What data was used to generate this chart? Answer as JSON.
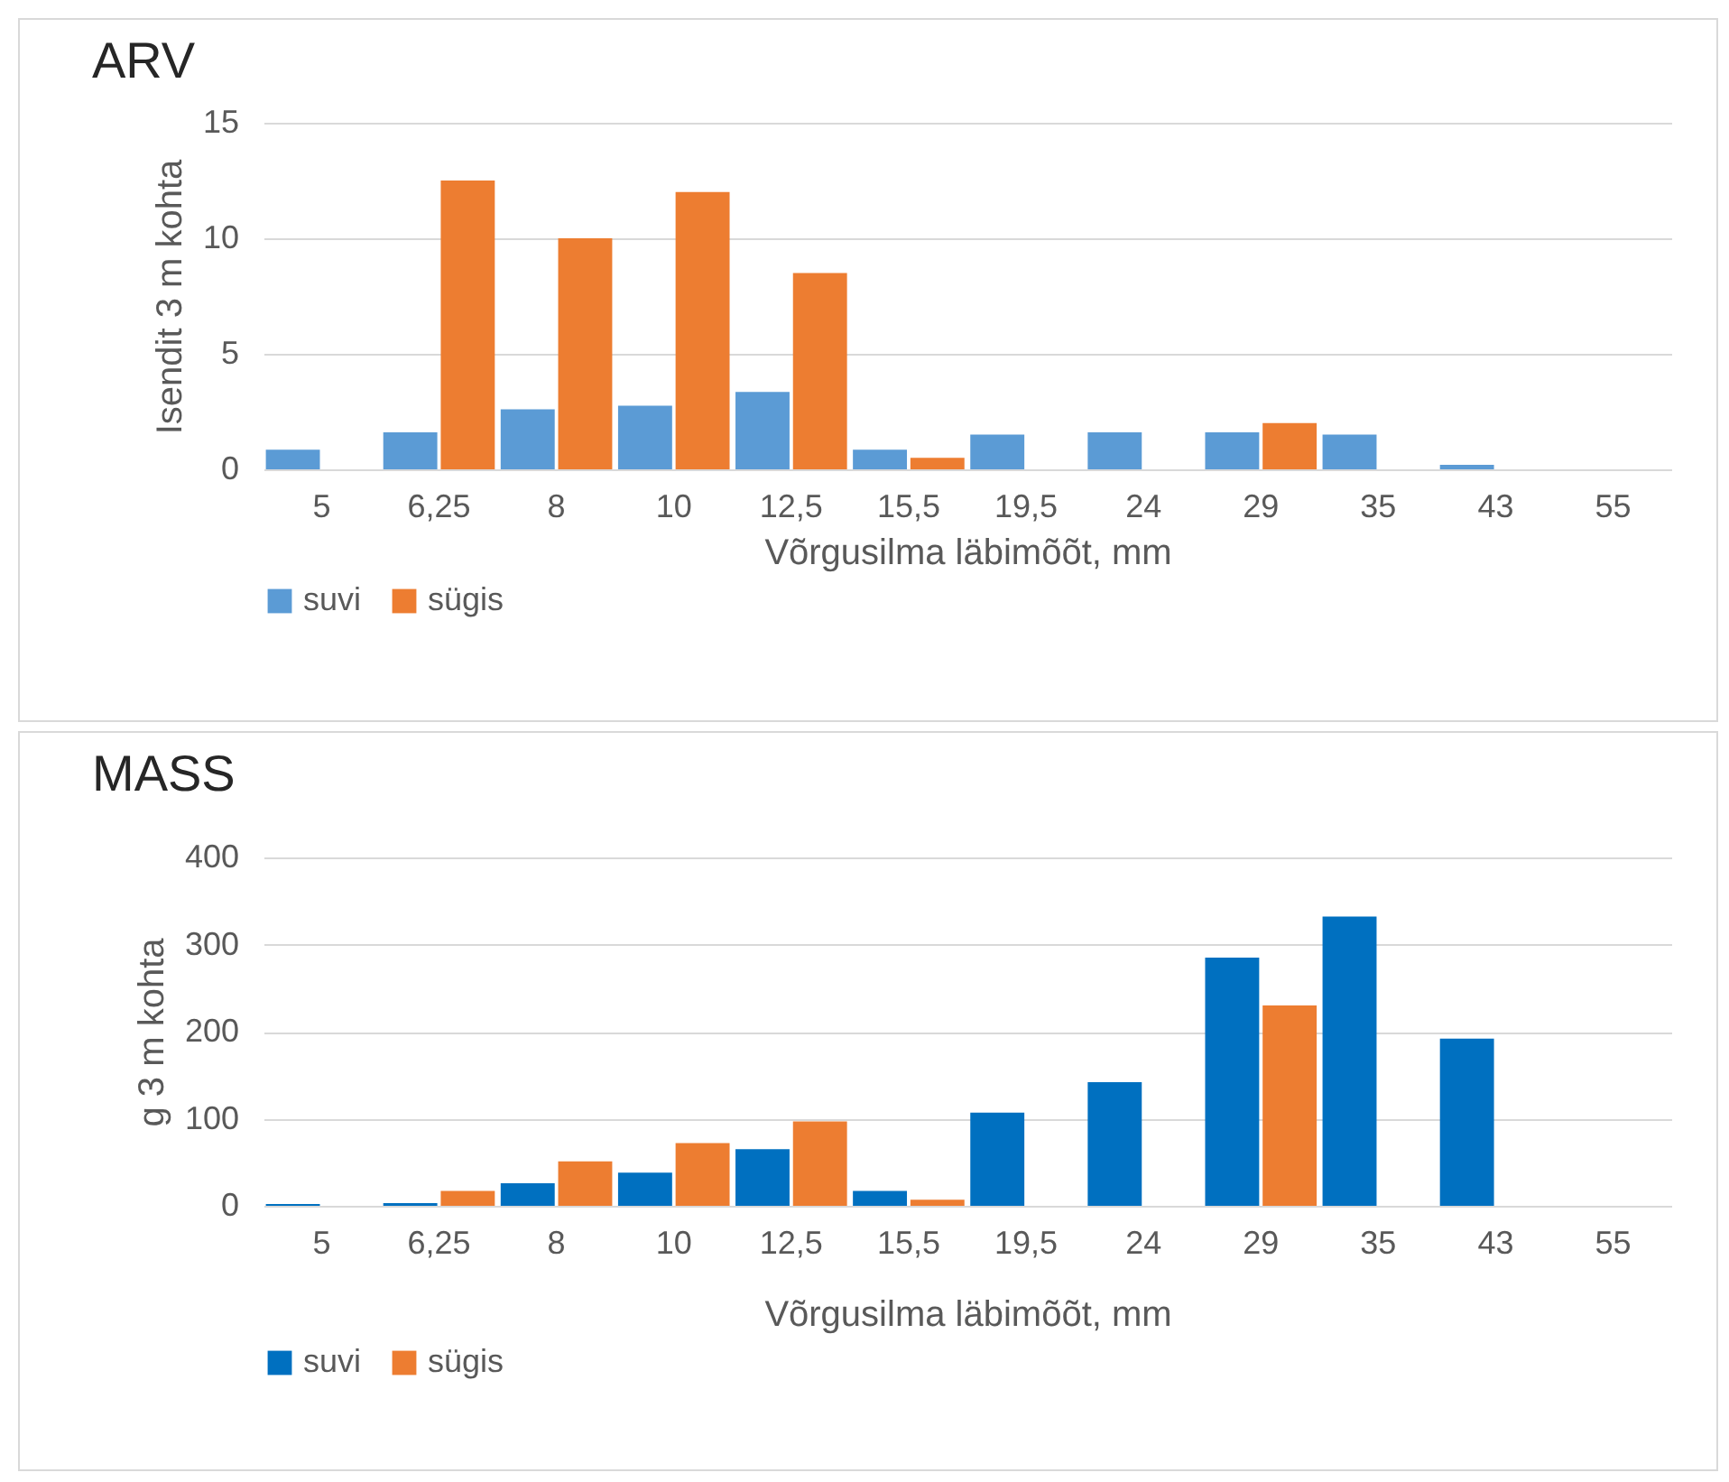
{
  "chart_data": [
    {
      "type": "bar",
      "title": "ARV",
      "xlabel": "Võrgusilma läbimõõt, mm",
      "ylabel": "Isendit 3 m kohta",
      "categories": [
        "5",
        "6,25",
        "8",
        "10",
        "12,5",
        "15,5",
        "19,5",
        "24",
        "29",
        "35",
        "43",
        "55"
      ],
      "series": [
        {
          "name": "suvi",
          "color": "#5b9bd5",
          "values": [
            0.85,
            1.6,
            2.6,
            2.75,
            3.35,
            0.85,
            1.5,
            1.6,
            1.6,
            1.5,
            0.2,
            null
          ]
        },
        {
          "name": "sügis",
          "color": "#ed7d31",
          "values": [
            null,
            12.5,
            10,
            12,
            8.5,
            0.5,
            null,
            null,
            2,
            null,
            null,
            null
          ]
        }
      ],
      "ylim": [
        0,
        15
      ],
      "yticks": [
        0,
        5,
        10,
        15
      ],
      "grid": "y",
      "legend": "bottom"
    },
    {
      "type": "bar",
      "title": "MASS",
      "xlabel": "Võrgusilma läbimõõt, mm",
      "ylabel": "g 3 m kohta",
      "categories": [
        "5",
        "6,25",
        "8",
        "10",
        "12,5",
        "15,5",
        "19,5",
        "24",
        "29",
        "35",
        "43",
        "55"
      ],
      "series": [
        {
          "name": "suvi",
          "color": "#0070c0",
          "values": [
            2,
            3,
            26,
            38,
            65,
            17,
            107,
            142,
            285,
            332,
            192,
            null
          ]
        },
        {
          "name": "sügis",
          "color": "#ed7d31",
          "values": [
            null,
            17,
            51,
            72,
            97,
            7,
            null,
            null,
            230,
            null,
            null,
            null
          ]
        }
      ],
      "ylim": [
        0,
        400
      ],
      "yticks": [
        0,
        100,
        200,
        300,
        400
      ],
      "grid": "y",
      "legend": "bottom"
    }
  ]
}
